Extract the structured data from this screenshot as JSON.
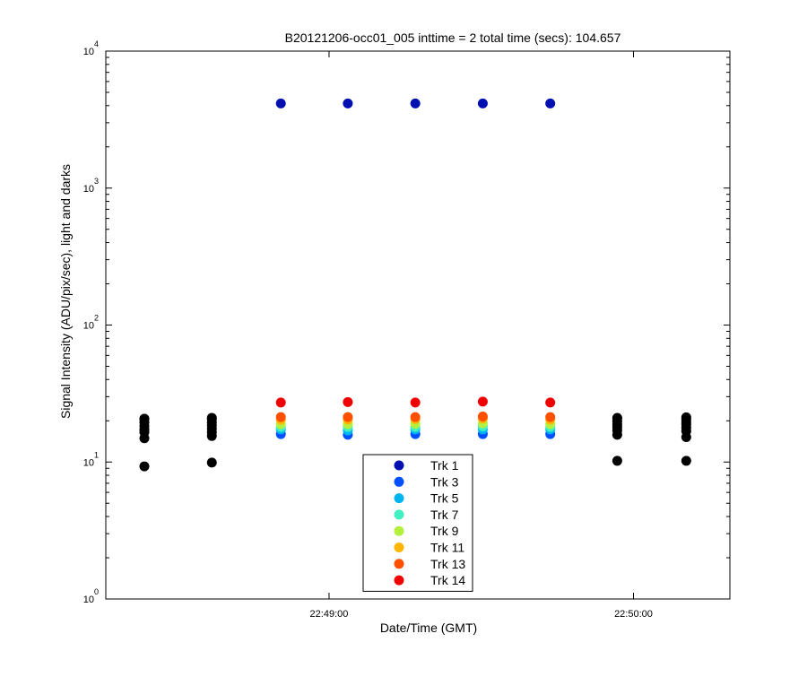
{
  "chart_data": {
    "type": "scatter",
    "title": "B20121206-occ01_005 inttime = 2 total time (secs): 104.657",
    "xlabel": "Date/Time (GMT)",
    "ylabel": "Signal Intensity (ADU/pix/sec), light and darks",
    "yscale": "log",
    "xlim": [
      82096,
      82219
    ],
    "xticks": [
      {
        "value": 82140,
        "label": "22:49:00"
      },
      {
        "value": 82200,
        "label": "22:50:00"
      }
    ],
    "ylim": [
      1,
      10000
    ],
    "yticks": [
      {
        "value": 1,
        "label": "10^0"
      },
      {
        "value": 10,
        "label": "10^1"
      },
      {
        "value": 100,
        "label": "10^2"
      },
      {
        "value": 1000,
        "label": "10^3"
      },
      {
        "value": 10000,
        "label": "10^4"
      }
    ],
    "x": [
      82103.6,
      82116.9,
      82130.5,
      82143.7,
      82157.0,
      82170.3,
      82183.6,
      82196.8,
      82210.4
    ],
    "dark_color": "#000000",
    "legend": "bottom-center",
    "series": [
      {
        "name": "Trk 1",
        "color": "#0010b0",
        "values": [
          null,
          null,
          4150,
          4150,
          4150,
          4150,
          4150,
          null,
          null
        ],
        "dark_values": [
          9.3,
          9.9,
          null,
          null,
          null,
          null,
          null,
          10.2,
          10.2
        ]
      },
      {
        "name": "Trk 3",
        "color": "#0050ff",
        "values": [
          null,
          null,
          16.0,
          15.8,
          16.0,
          16.0,
          16.0,
          null,
          null
        ],
        "dark_values": [
          14.9,
          15.5,
          null,
          null,
          null,
          null,
          null,
          15.8,
          15.2
        ]
      },
      {
        "name": "Trk 5",
        "color": "#00b4f0",
        "values": [
          null,
          null,
          17.3,
          17.0,
          17.3,
          17.3,
          17.3,
          null,
          null
        ],
        "dark_values": [
          16.5,
          16.5,
          null,
          null,
          null,
          null,
          null,
          17.0,
          16.8
        ]
      },
      {
        "name": "Trk 7",
        "color": "#40f0c0",
        "values": [
          null,
          null,
          18.0,
          18.0,
          18.0,
          18.2,
          18.0,
          null,
          null
        ],
        "dark_values": [
          17.3,
          17.5,
          null,
          null,
          null,
          null,
          null,
          18.0,
          17.8
        ]
      },
      {
        "name": "Trk 9",
        "color": "#b4f040",
        "values": [
          null,
          null,
          18.9,
          18.9,
          19.0,
          19.2,
          18.9,
          null,
          null
        ],
        "dark_values": [
          18.3,
          18.5,
          null,
          null,
          null,
          null,
          null,
          18.8,
          18.8
        ]
      },
      {
        "name": "Trk 11",
        "color": "#ffb400",
        "values": [
          null,
          null,
          20.4,
          20.4,
          20.6,
          20.8,
          20.4,
          null,
          null
        ],
        "dark_values": [
          19.5,
          19.5,
          null,
          null,
          null,
          null,
          null,
          19.8,
          19.6
        ]
      },
      {
        "name": "Trk 13",
        "color": "#ff5000",
        "values": [
          null,
          null,
          21.3,
          21.3,
          21.3,
          21.5,
          21.3,
          null,
          null
        ],
        "dark_values": [
          20.7,
          20.5,
          null,
          null,
          null,
          null,
          null,
          20.8,
          20.6
        ]
      },
      {
        "name": "Trk 14",
        "color": "#f00000",
        "values": [
          null,
          null,
          27.2,
          27.4,
          27.2,
          27.6,
          27.2,
          null,
          null
        ],
        "dark_values": [
          20.7,
          21.0,
          null,
          null,
          null,
          null,
          null,
          21.0,
          21.2
        ]
      }
    ]
  }
}
